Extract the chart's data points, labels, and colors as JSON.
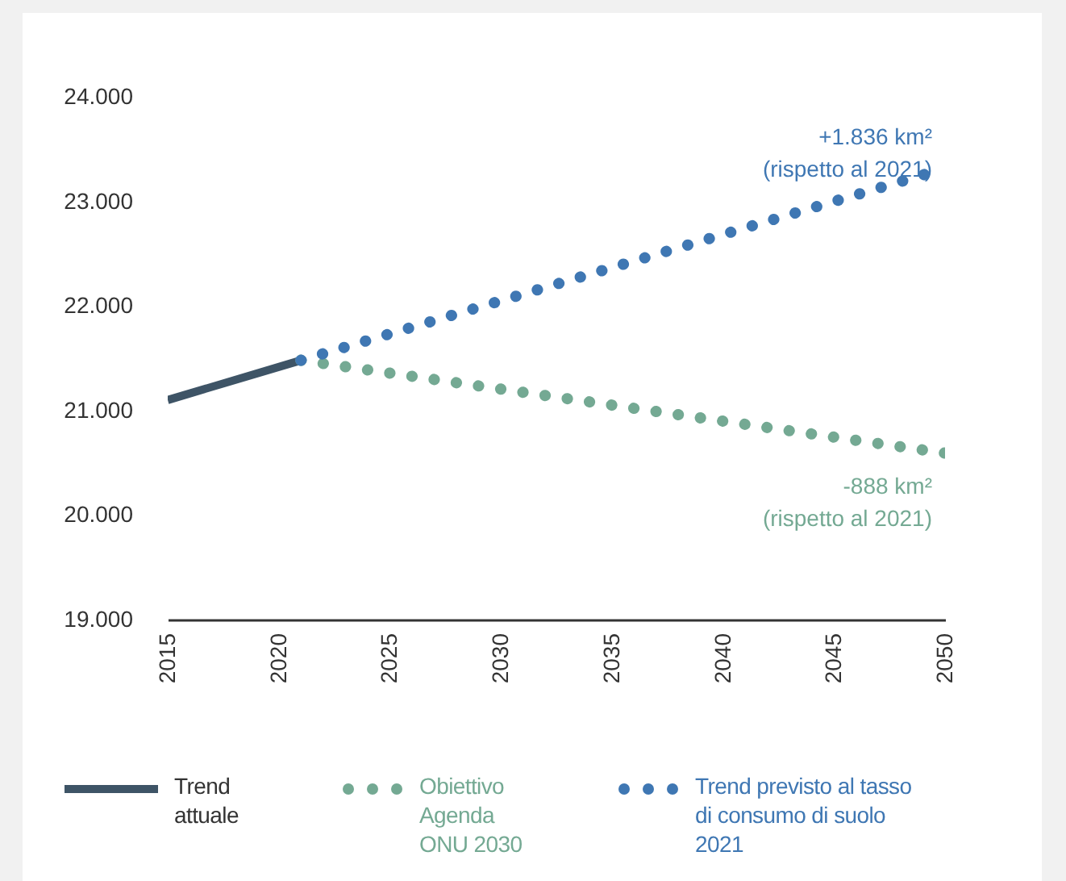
{
  "chart_data": {
    "type": "line",
    "xlim": [
      2015,
      2050
    ],
    "xticks": [
      2015,
      2020,
      2025,
      2030,
      2035,
      2040,
      2045,
      2050
    ],
    "ylim": [
      19000,
      24000
    ],
    "yticks": [
      {
        "value": 19000,
        "label": "19.000"
      },
      {
        "value": 20000,
        "label": "20.000"
      },
      {
        "value": 21000,
        "label": "21.000"
      },
      {
        "value": 22000,
        "label": "22.000"
      },
      {
        "value": 23000,
        "label": "23.000"
      },
      {
        "value": 24000,
        "label": "24.000"
      }
    ],
    "grid": false,
    "legend": "bottom",
    "series": [
      {
        "name": "Trend attuale",
        "color": "#3e5466",
        "line_style": "solid",
        "x": [
          2015,
          2021
        ],
        "values": [
          21100,
          21480
        ]
      },
      {
        "name": "Obiettivo Agenda ONU 2030",
        "color": "#74a993",
        "line_style": "dotted",
        "x": [
          2021,
          2050
        ],
        "values": [
          21480,
          20592
        ]
      },
      {
        "name": "Trend previsto al tasso di consumo di suolo 2021",
        "color": "#3f77b3",
        "line_style": "dotted",
        "x": [
          2021,
          2050
        ],
        "values": [
          21480,
          23316
        ]
      }
    ],
    "annotations": [
      {
        "text": "+1.836 km² (rispetto al 2021)",
        "x": 2050,
        "y": 23316
      },
      {
        "text": "-888 km² (rispetto al 2021)",
        "x": 2050,
        "y": 20592
      }
    ]
  }
}
